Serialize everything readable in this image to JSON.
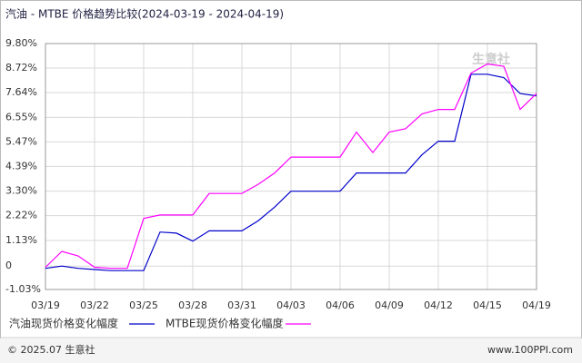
{
  "chart_data": {
    "type": "line",
    "title": "汽油 - MTBE 价格趋势比较(2024-03-19 - 2024-04-19)",
    "categories": [
      "03/19",
      null,
      null,
      "03/22",
      null,
      null,
      "03/25",
      null,
      null,
      "03/28",
      null,
      null,
      "03/31",
      null,
      null,
      "04/03",
      null,
      null,
      "04/06",
      null,
      null,
      "04/09",
      null,
      null,
      "04/12",
      null,
      null,
      "04/15",
      null,
      null,
      "04/19"
    ],
    "series": [
      {
        "name": "汽油现货价格变化幅度",
        "color": "#0000cc",
        "values": [
          -0.1,
          0,
          -0.1,
          -0.15,
          -0.2,
          -0.2,
          -0.2,
          1.5,
          1.45,
          1.1,
          1.55,
          1.55,
          1.55,
          2.0,
          2.6,
          3.3,
          3.3,
          3.3,
          3.3,
          4.1,
          4.1,
          4.1,
          4.1,
          4.9,
          5.5,
          5.5,
          8.45,
          8.45,
          8.3,
          7.6,
          7.5
        ]
      },
      {
        "name": "MTBE现货价格变化幅度",
        "color": "#ff00ff",
        "values": [
          -0.05,
          0.65,
          0.45,
          -0.05,
          -0.1,
          -0.1,
          2.1,
          2.25,
          2.25,
          2.25,
          3.2,
          3.2,
          3.2,
          3.6,
          4.1,
          4.8,
          4.8,
          4.8,
          4.8,
          5.9,
          5.0,
          5.9,
          6.05,
          6.7,
          6.9,
          6.9,
          8.5,
          8.9,
          8.8,
          6.9,
          7.6
        ]
      }
    ],
    "ylim": [
      -1.03,
      9.8
    ],
    "yticks": [
      {
        "value": -1.03,
        "label": "-1.03%"
      },
      0,
      {
        "value": 1.13,
        "label": "1.13%"
      },
      {
        "value": 2.22,
        "label": "2.22%"
      },
      {
        "value": 3.3,
        "label": "3.30%"
      },
      {
        "value": 4.39,
        "label": "4.39%"
      },
      {
        "value": 5.47,
        "label": "5.47%"
      },
      {
        "value": 6.55,
        "label": "6.55%"
      },
      {
        "value": 7.64,
        "label": "7.64%"
      },
      {
        "value": 8.72,
        "label": "8.72%"
      },
      {
        "value": 9.8,
        "label": "9.80%"
      }
    ],
    "grid": true,
    "watermark": "生意社",
    "footer_left": "© 2025.07 生意社",
    "footer_right": "www.100PPI.com"
  }
}
